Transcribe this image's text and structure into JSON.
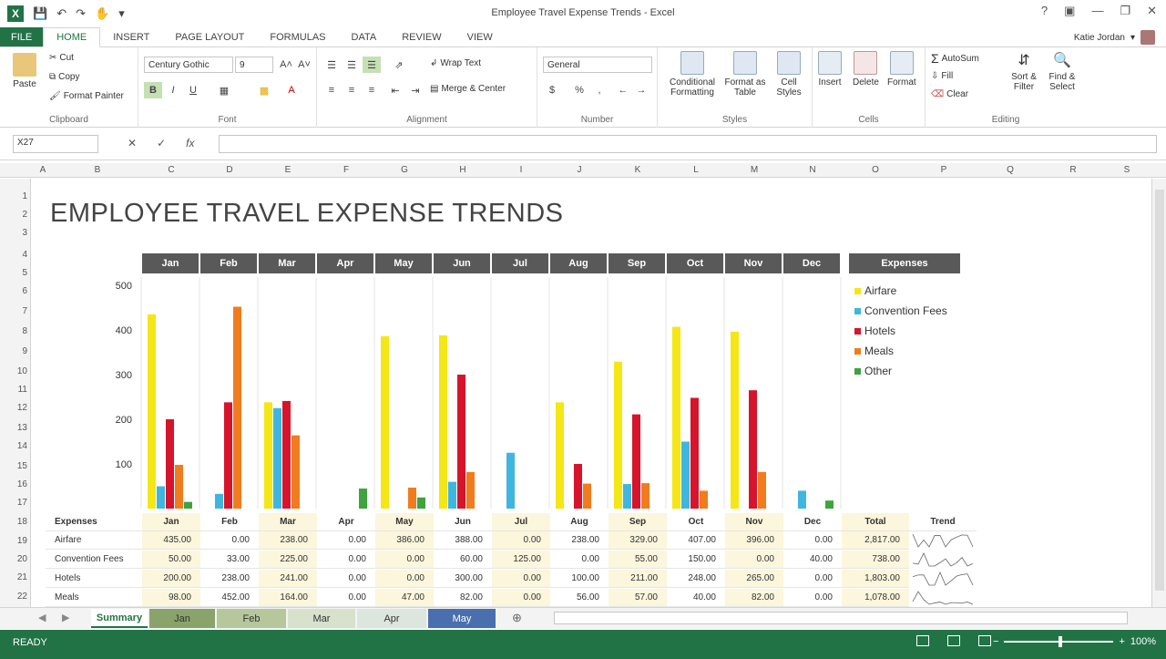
{
  "window": {
    "title": "Employee Travel Expense Trends - Excel",
    "help": "?",
    "minimize": "—",
    "restore": "❐",
    "close": "✕"
  },
  "ribbon_tabs": [
    "FILE",
    "HOME",
    "INSERT",
    "PAGE LAYOUT",
    "FORMULAS",
    "DATA",
    "REVIEW",
    "VIEW"
  ],
  "user": {
    "name": "Katie Jordan"
  },
  "ribbon": {
    "clipboard": {
      "paste": "Paste",
      "cut": "Cut",
      "copy": "Copy",
      "format_painter": "Format Painter",
      "label": "Clipboard"
    },
    "font": {
      "family": "Century Gothic",
      "size": "9",
      "label": "Font",
      "bold": "B",
      "italic": "I",
      "underline": "U"
    },
    "alignment": {
      "wrap_text": "Wrap Text",
      "merge_center": "Merge & Center",
      "label": "Alignment"
    },
    "number": {
      "format": "General",
      "currency": "$",
      "percent": "%",
      "comma": ",",
      "label": "Number"
    },
    "styles": {
      "conditional": "Conditional Formatting",
      "format_table": "Format as Table",
      "cell_styles": "Cell Styles",
      "label": "Styles"
    },
    "cells": {
      "insert": "Insert",
      "delete": "Delete",
      "format": "Format",
      "label": "Cells"
    },
    "editing": {
      "autosum": "AutoSum",
      "fill": "Fill",
      "clear": "Clear",
      "sort_filter": "Sort & Filter",
      "find_select": "Find & Select",
      "label": "Editing"
    }
  },
  "formula_bar": {
    "name_box": "X27",
    "cancel": "✕",
    "enter": "✓",
    "fx": "fx",
    "value": ""
  },
  "columns": [
    "A",
    "B",
    "C",
    "D",
    "E",
    "F",
    "G",
    "H",
    "I",
    "J",
    "K",
    "L",
    "M",
    "N",
    "O",
    "P",
    "Q",
    "R",
    "S"
  ],
  "rows": [
    "1",
    "2",
    "3",
    "4",
    "5",
    "6",
    "7",
    "8",
    "9",
    "10",
    "11",
    "12",
    "13",
    "14",
    "15",
    "16",
    "17",
    "18",
    "19",
    "20",
    "21",
    "22"
  ],
  "sheet": {
    "title": "EMPLOYEE TRAVEL EXPENSE TRENDS",
    "expenses_header": "Expenses"
  },
  "colors": {
    "excel_green": "#217346",
    "Airfare": "#f5e616",
    "Convention Fees": "#3fb6e0",
    "Hotels": "#d6142b",
    "Meals": "#f07c1e",
    "Other": "#3fa33f"
  },
  "chart_data": {
    "type": "bar",
    "categories": [
      "Jan",
      "Feb",
      "Mar",
      "Apr",
      "May",
      "Jun",
      "Jul",
      "Aug",
      "Sep",
      "Oct",
      "Nov",
      "Dec"
    ],
    "ylim": [
      0,
      500
    ],
    "yticks": [
      "500",
      "400",
      "300",
      "200",
      "100"
    ],
    "legend_title": "Expenses",
    "series": [
      {
        "name": "Airfare",
        "values": [
          435,
          0,
          238,
          0,
          386,
          388,
          0,
          238,
          329,
          407,
          396,
          0
        ]
      },
      {
        "name": "Convention Fees",
        "values": [
          50,
          33,
          225,
          0,
          0,
          60,
          125,
          0,
          55,
          150,
          0,
          40
        ]
      },
      {
        "name": "Hotels",
        "values": [
          200,
          238,
          241,
          0,
          0,
          300,
          0,
          100,
          211,
          248,
          265,
          0
        ]
      },
      {
        "name": "Meals",
        "values": [
          98,
          452,
          164,
          0,
          47,
          82,
          0,
          56,
          57,
          40,
          82,
          0
        ]
      },
      {
        "name": "Other",
        "values": [
          15,
          0,
          0,
          45,
          25,
          0,
          0,
          0,
          0,
          0,
          0,
          18
        ]
      }
    ]
  },
  "table": {
    "headers": [
      "Expenses",
      "Jan",
      "Feb",
      "Mar",
      "Apr",
      "May",
      "Jun",
      "Jul",
      "Aug",
      "Sep",
      "Oct",
      "Nov",
      "Dec",
      "Total",
      "Trend"
    ],
    "rows": [
      [
        "Airfare",
        "435.00",
        "0.00",
        "238.00",
        "0.00",
        "386.00",
        "388.00",
        "0.00",
        "238.00",
        "329.00",
        "407.00",
        "396.00",
        "0.00",
        "2,817.00"
      ],
      [
        "Convention Fees",
        "50.00",
        "33.00",
        "225.00",
        "0.00",
        "0.00",
        "60.00",
        "125.00",
        "0.00",
        "55.00",
        "150.00",
        "0.00",
        "40.00",
        "738.00"
      ],
      [
        "Hotels",
        "200.00",
        "238.00",
        "241.00",
        "0.00",
        "0.00",
        "300.00",
        "0.00",
        "100.00",
        "211.00",
        "248.00",
        "265.00",
        "0.00",
        "1,803.00"
      ],
      [
        "Meals",
        "98.00",
        "452.00",
        "164.00",
        "0.00",
        "47.00",
        "82.00",
        "0.00",
        "56.00",
        "57.00",
        "40.00",
        "82.00",
        "0.00",
        "1,078.00"
      ]
    ]
  },
  "sheet_tabs": [
    {
      "label": "Summary",
      "color": "#ffffff"
    },
    {
      "label": "Jan",
      "color": "#8aa36b"
    },
    {
      "label": "Feb",
      "color": "#b5c79b"
    },
    {
      "label": "Mar",
      "color": "#d7e1cc"
    },
    {
      "label": "Apr",
      "color": "#dde6dd"
    },
    {
      "label": "May",
      "color": "#4a6fae"
    }
  ],
  "status": {
    "text": "READY",
    "zoom": "100%",
    "zoom_out": "−",
    "zoom_in": "+"
  }
}
